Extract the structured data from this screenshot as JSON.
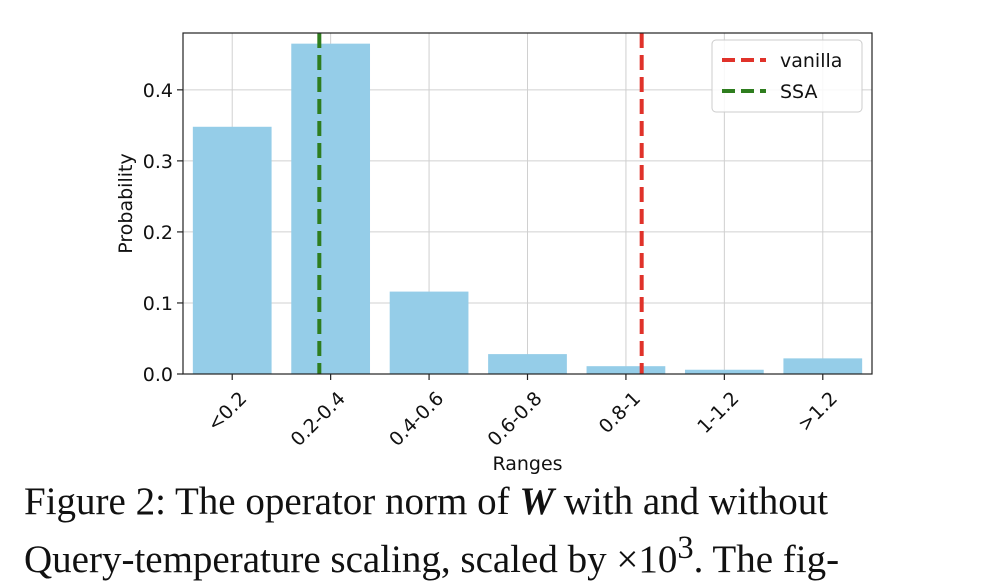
{
  "chart_data": {
    "type": "bar",
    "categories": [
      "<0.2",
      "0.2-0.4",
      "0.4-0.6",
      "0.6-0.8",
      "0.8-1",
      "1-1.2",
      ">1.2"
    ],
    "values": [
      0.348,
      0.465,
      0.116,
      0.028,
      0.011,
      0.006,
      0.022
    ],
    "bar_color": "#95cde8",
    "xlabel": "Ranges",
    "ylabel": "Probability",
    "ylim": [
      0,
      0.48
    ],
    "yticks": [
      0.0,
      0.1,
      0.2,
      0.3,
      0.4
    ],
    "ytick_labels": [
      "0.0",
      "0.1",
      "0.2",
      "0.3",
      "0.4"
    ],
    "grid": true,
    "vlines": [
      {
        "name": "vanilla",
        "color": "#e0322a",
        "style": "dashed",
        "x_index": 4.66
      },
      {
        "name": "SSA",
        "color": "#2e7d1e",
        "style": "dashed",
        "x_index": 1.385
      }
    ],
    "legend_position": "top-right"
  },
  "caption": {
    "line1_prefix": "Figure 2: The operator norm of",
    "line1_symbol": "W",
    "line1_suffix": "with and without",
    "line2_prefix": "Query-temperature scaling, scaled by ×10",
    "line2_exponent": "3",
    "line2_suffix": ". The fig-"
  }
}
